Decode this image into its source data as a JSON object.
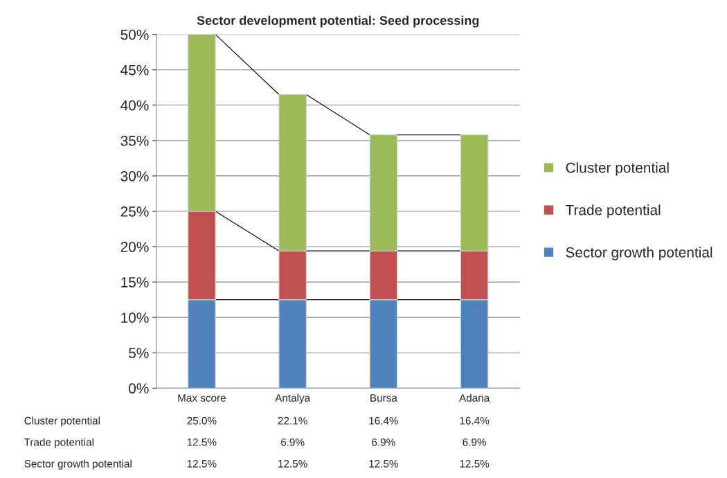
{
  "chart_data": {
    "type": "bar",
    "title": "Sector development potential: Seed processing",
    "categories": [
      "Max score",
      "Antalya",
      "Bursa",
      "Adana"
    ],
    "stacked": true,
    "series": [
      {
        "name": "Sector growth potential",
        "color": "#4f81bd",
        "values": [
          12.5,
          12.5,
          12.5,
          12.5
        ],
        "value_labels": [
          "12.5%",
          "12.5%",
          "12.5%",
          "12.5%"
        ]
      },
      {
        "name": "Trade potential",
        "color": "#c0504d",
        "values": [
          12.5,
          6.9,
          6.9,
          6.9
        ],
        "value_labels": [
          "12.5%",
          "6.9%",
          "6.9%",
          "6.9%"
        ]
      },
      {
        "name": "Cluster potential",
        "color": "#9bbb59",
        "values": [
          25.0,
          22.1,
          16.4,
          16.4
        ],
        "value_labels": [
          "25.0%",
          "22.1%",
          "16.4%",
          "16.4%"
        ]
      }
    ],
    "ylim": [
      0,
      50
    ],
    "yticks": [
      {
        "value": 0,
        "label": "0%"
      },
      {
        "value": 5,
        "label": "5%"
      },
      {
        "value": 10,
        "label": "10%"
      },
      {
        "value": 15,
        "label": "15%"
      },
      {
        "value": 20,
        "label": "20%"
      },
      {
        "value": 25,
        "label": "25%"
      },
      {
        "value": 30,
        "label": "30%"
      },
      {
        "value": 35,
        "label": "35%"
      },
      {
        "value": 40,
        "label": "40%"
      },
      {
        "value": 45,
        "label": "45%"
      },
      {
        "value": 50,
        "label": "50%"
      }
    ],
    "grid": "y",
    "legend": "right"
  }
}
